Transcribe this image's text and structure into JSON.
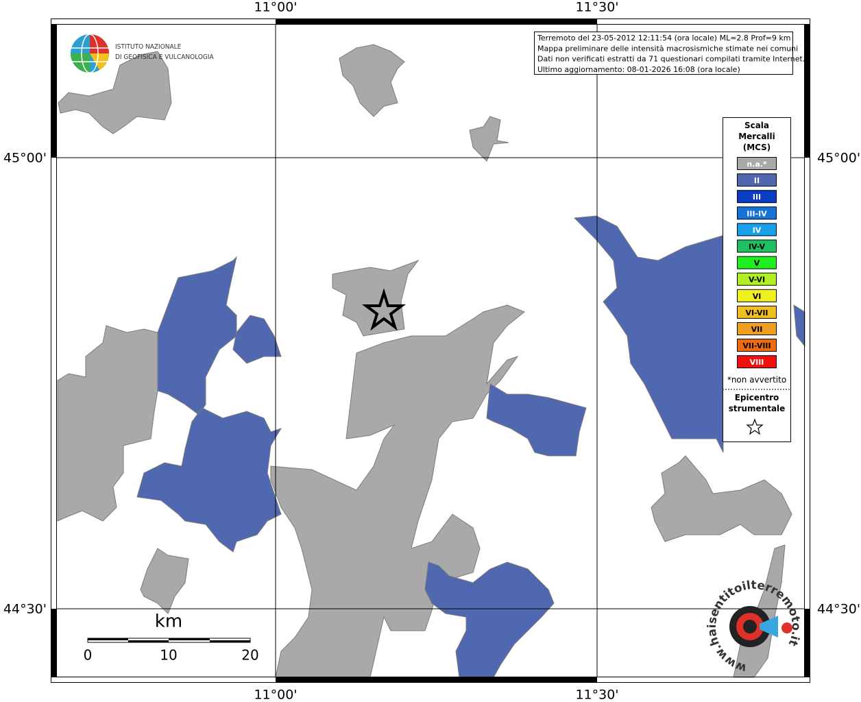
{
  "map": {
    "top_labels": [
      "11°00'",
      "11°30'"
    ],
    "bottom_labels": [
      "11°00'",
      "11°30'"
    ],
    "left_labels": [
      "45°00'",
      "44°30'"
    ],
    "right_labels": [
      "45°00'",
      "44°30'"
    ],
    "info": [
      "Terremoto del 23-05-2012 12:11:54 (ora locale) ML=2.8 Prof=9 km",
      "Mappa preliminare delle intensità macrosismiche stimate nei comuni",
      "Dati non verificati estratti da 71 questionari compilati tramite Internet.",
      "Ultimo aggiornamento: 08-01-2026 16:08 (ora locale)"
    ],
    "logo": [
      "ISTITUTO NAZIONALE",
      "DI GEOFISICA E VULCANOLOGIA"
    ],
    "legend": {
      "title": [
        "Scala",
        "Mercalli",
        "(MCS)"
      ],
      "items": [
        {
          "label": "n.a.*",
          "color": "#a9a9a9",
          "text": "#ffffff"
        },
        {
          "label": "II",
          "color": "#5068b0",
          "text": "#ffffff"
        },
        {
          "label": "III",
          "color": "#0a3cc4",
          "text": "#ffffff"
        },
        {
          "label": "III-IV",
          "color": "#1673d6",
          "text": "#ffffff"
        },
        {
          "label": "IV",
          "color": "#1aa0e8",
          "text": "#ffffff"
        },
        {
          "label": "IV-V",
          "color": "#20c060",
          "text": "#000000"
        },
        {
          "label": "V",
          "color": "#20ee20",
          "text": "#000000"
        },
        {
          "label": "V-VI",
          "color": "#b0f020",
          "text": "#000000"
        },
        {
          "label": "VI",
          "color": "#f0f020",
          "text": "#000000"
        },
        {
          "label": "VI-VII",
          "color": "#f0c020",
          "text": "#000000"
        },
        {
          "label": "VII",
          "color": "#f0a020",
          "text": "#000000"
        },
        {
          "label": "VII-VIII",
          "color": "#f06a10",
          "text": "#000000"
        },
        {
          "label": "VIII",
          "color": "#f01010",
          "text": "#ffffff"
        }
      ],
      "note": "*non avvertito",
      "epicenter": [
        "Epicentro",
        "strumentale"
      ]
    },
    "scale": {
      "unit": "km",
      "labels": [
        "0",
        "10",
        "20"
      ]
    },
    "site": "www.haisentitoilterremoto.it"
  }
}
